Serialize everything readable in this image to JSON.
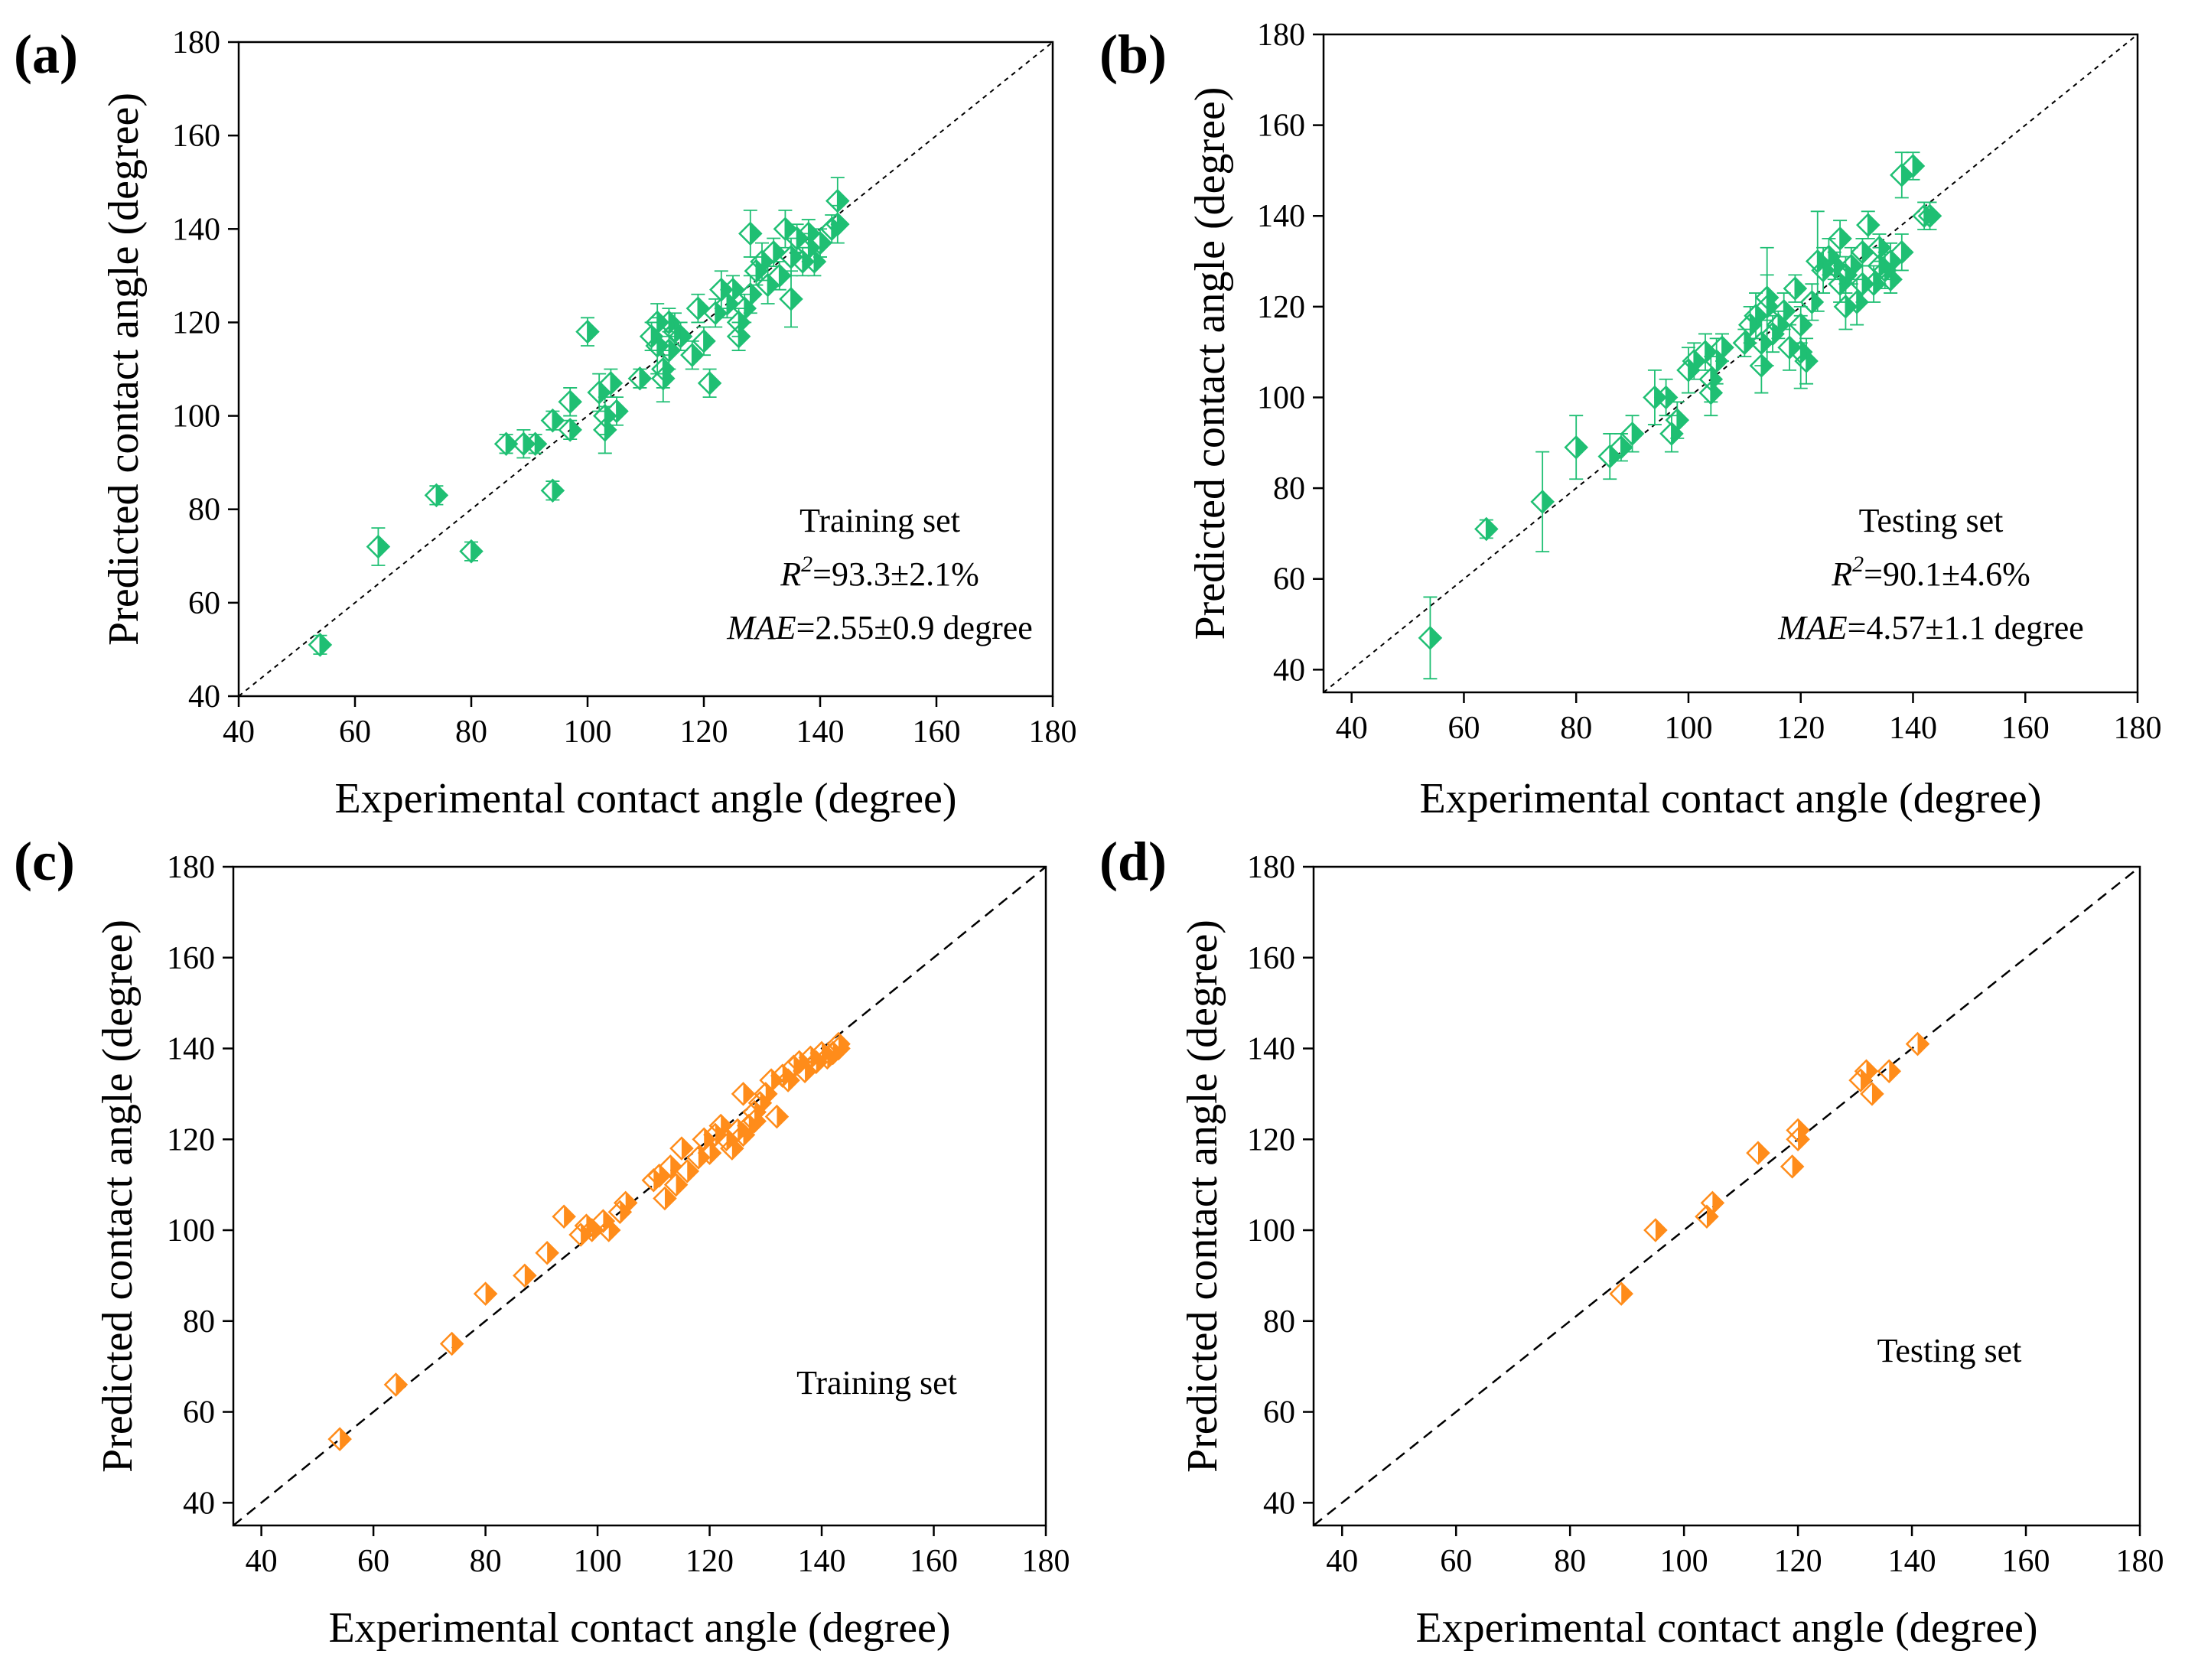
{
  "chart_data": [
    {
      "panel": "(a)",
      "type": "scatter",
      "color": "#1fbf73",
      "xlabel": "Experimental contact angle (degree)",
      "ylabel": "Predicted contact angle (degree)",
      "xlim": [
        40,
        180
      ],
      "ylim": [
        40,
        180
      ],
      "xticks": [
        "40",
        "60",
        "80",
        "100",
        "120",
        "140",
        "160",
        "180"
      ],
      "yticks": [
        "40",
        "60",
        "80",
        "100",
        "120",
        "140",
        "160",
        "180"
      ],
      "reference_line": "y = x (dotted)",
      "error_bars": true,
      "annotation": [
        "Training set",
        "R",
        "2",
        "=93.3±2.1%",
        "MAE",
        "=2.55±0.9 degree"
      ],
      "points": [
        [
          54,
          51,
          2
        ],
        [
          64,
          72,
          4
        ],
        [
          74,
          83,
          2
        ],
        [
          80,
          71,
          2
        ],
        [
          86,
          94,
          2
        ],
        [
          89,
          94,
          3
        ],
        [
          91,
          94,
          2
        ],
        [
          94,
          99,
          2
        ],
        [
          94,
          84,
          2
        ],
        [
          97,
          103,
          3
        ],
        [
          97,
          97,
          2
        ],
        [
          100,
          118,
          3
        ],
        [
          102,
          105,
          4
        ],
        [
          103,
          97,
          5
        ],
        [
          103,
          100,
          4
        ],
        [
          104,
          107,
          3
        ],
        [
          105,
          101,
          3
        ],
        [
          109,
          108,
          2
        ],
        [
          111,
          117,
          3
        ],
        [
          112,
          120,
          4
        ],
        [
          112,
          115,
          6
        ],
        [
          113,
          108,
          5
        ],
        [
          113,
          110,
          4
        ],
        [
          114,
          120,
          3
        ],
        [
          114,
          114,
          4
        ],
        [
          115,
          118,
          4
        ],
        [
          116,
          117,
          3
        ],
        [
          118,
          113,
          3
        ],
        [
          119,
          123,
          3
        ],
        [
          120,
          116,
          3
        ],
        [
          121,
          107,
          3
        ],
        [
          122,
          122,
          3
        ],
        [
          123,
          127,
          4
        ],
        [
          124,
          124,
          3
        ],
        [
          125,
          127,
          3
        ],
        [
          126,
          117,
          3
        ],
        [
          126,
          120,
          3
        ],
        [
          127,
          123,
          3
        ],
        [
          128,
          139,
          5
        ],
        [
          128,
          126,
          4
        ],
        [
          129,
          131,
          3
        ],
        [
          130,
          133,
          4
        ],
        [
          131,
          128,
          4
        ],
        [
          132,
          135,
          3
        ],
        [
          133,
          130,
          3
        ],
        [
          134,
          140,
          4
        ],
        [
          135,
          125,
          6
        ],
        [
          135,
          134,
          4
        ],
        [
          136,
          138,
          3
        ],
        [
          137,
          133,
          3
        ],
        [
          138,
          136,
          3
        ],
        [
          138,
          139,
          3
        ],
        [
          139,
          133,
          3
        ],
        [
          140,
          137,
          3
        ],
        [
          142,
          140,
          3
        ],
        [
          143,
          141,
          4
        ],
        [
          143,
          146,
          5
        ]
      ]
    },
    {
      "panel": "(b)",
      "type": "scatter",
      "color": "#1fbf73",
      "xlabel": "Experimental contact angle (degree)",
      "ylabel": "Predicted contact angle (degree)",
      "xlim": [
        35,
        180
      ],
      "ylim": [
        35,
        180
      ],
      "xticks": [
        "40",
        "60",
        "80",
        "100",
        "120",
        "140",
        "160",
        "180"
      ],
      "yticks": [
        "40",
        "60",
        "80",
        "100",
        "120",
        "140",
        "160",
        "180"
      ],
      "reference_line": "y = x (dotted)",
      "error_bars": true,
      "annotation": [
        "Testing set",
        "R",
        "2",
        "=90.1±4.6%",
        "MAE",
        "=4.57±1.1 degree"
      ],
      "points": [
        [
          54,
          47,
          9
        ],
        [
          64,
          71,
          2
        ],
        [
          74,
          77,
          11
        ],
        [
          80,
          89,
          7
        ],
        [
          86,
          87,
          5
        ],
        [
          88,
          89,
          3
        ],
        [
          90,
          92,
          4
        ],
        [
          94,
          100,
          6
        ],
        [
          96,
          100,
          4
        ],
        [
          97,
          92,
          4
        ],
        [
          98,
          95,
          4
        ],
        [
          100,
          106,
          5
        ],
        [
          101,
          108,
          4
        ],
        [
          103,
          110,
          4
        ],
        [
          104,
          101,
          5
        ],
        [
          104,
          104,
          5
        ],
        [
          105,
          108,
          5
        ],
        [
          106,
          111,
          3
        ],
        [
          110,
          112,
          3
        ],
        [
          111,
          116,
          4
        ],
        [
          112,
          118,
          5
        ],
        [
          113,
          107,
          6
        ],
        [
          113,
          112,
          5
        ],
        [
          114,
          120,
          13
        ],
        [
          114,
          122,
          5
        ],
        [
          115,
          114,
          4
        ],
        [
          116,
          116,
          3
        ],
        [
          117,
          119,
          4
        ],
        [
          118,
          111,
          5
        ],
        [
          119,
          124,
          3
        ],
        [
          120,
          116,
          4
        ],
        [
          120,
          110,
          8
        ],
        [
          121,
          108,
          5
        ],
        [
          122,
          121,
          4
        ],
        [
          123,
          130,
          11
        ],
        [
          124,
          128,
          5
        ],
        [
          125,
          131,
          4
        ],
        [
          126,
          129,
          3
        ],
        [
          127,
          125,
          4
        ],
        [
          127,
          135,
          4
        ],
        [
          128,
          120,
          5
        ],
        [
          128,
          127,
          4
        ],
        [
          129,
          129,
          4
        ],
        [
          130,
          121,
          5
        ],
        [
          131,
          125,
          4
        ],
        [
          131,
          132,
          3
        ],
        [
          132,
          138,
          3
        ],
        [
          133,
          125,
          4
        ],
        [
          134,
          129,
          4
        ],
        [
          134,
          133,
          3
        ],
        [
          135,
          128,
          4
        ],
        [
          136,
          126,
          3
        ],
        [
          136,
          130,
          4
        ],
        [
          138,
          132,
          4
        ],
        [
          138,
          149,
          5
        ],
        [
          140,
          151,
          3
        ],
        [
          142,
          140,
          3
        ],
        [
          143,
          140,
          3
        ]
      ]
    },
    {
      "panel": "(c)",
      "type": "scatter",
      "color": "#ff8c1a",
      "xlabel": "Experimental contact angle (degree)",
      "ylabel": "Predicted contact angle (degree)",
      "xlim": [
        35,
        180
      ],
      "ylim": [
        35,
        180
      ],
      "xticks": [
        "40",
        "60",
        "80",
        "100",
        "120",
        "140",
        "160",
        "180"
      ],
      "yticks": [
        "40",
        "60",
        "80",
        "100",
        "120",
        "140",
        "160",
        "180"
      ],
      "reference_line": "y = x (dashed)",
      "error_bars": false,
      "annotation": [
        "Training set"
      ],
      "points": [
        [
          54,
          54
        ],
        [
          64,
          66
        ],
        [
          74,
          75
        ],
        [
          80,
          86
        ],
        [
          87,
          90
        ],
        [
          91,
          95
        ],
        [
          94,
          103
        ],
        [
          97,
          99
        ],
        [
          98,
          101
        ],
        [
          99,
          100
        ],
        [
          101,
          102
        ],
        [
          102,
          100
        ],
        [
          104,
          104
        ],
        [
          105,
          106
        ],
        [
          110,
          111
        ],
        [
          111,
          112
        ],
        [
          112,
          107
        ],
        [
          113,
          114
        ],
        [
          114,
          110
        ],
        [
          115,
          118
        ],
        [
          116,
          113
        ],
        [
          118,
          116
        ],
        [
          119,
          120
        ],
        [
          120,
          117
        ],
        [
          121,
          121
        ],
        [
          122,
          123
        ],
        [
          123,
          120
        ],
        [
          124,
          118
        ],
        [
          125,
          122
        ],
        [
          126,
          121
        ],
        [
          126,
          130
        ],
        [
          127,
          123
        ],
        [
          128,
          126
        ],
        [
          128,
          124
        ],
        [
          129,
          128
        ],
        [
          130,
          130
        ],
        [
          131,
          133
        ],
        [
          132,
          125
        ],
        [
          133,
          134
        ],
        [
          134,
          133
        ],
        [
          135,
          136
        ],
        [
          136,
          137
        ],
        [
          137,
          135
        ],
        [
          138,
          138
        ],
        [
          139,
          137
        ],
        [
          140,
          139
        ],
        [
          141,
          138
        ],
        [
          142,
          139
        ],
        [
          143,
          141
        ],
        [
          143,
          140
        ]
      ]
    },
    {
      "panel": "(d)",
      "type": "scatter",
      "color": "#ff8c1a",
      "xlabel": "Experimental contact angle (degree)",
      "ylabel": "Predicted contact angle (degree)",
      "xlim": [
        35,
        180
      ],
      "ylim": [
        35,
        180
      ],
      "xticks": [
        "40",
        "60",
        "80",
        "100",
        "120",
        "140",
        "160",
        "180"
      ],
      "yticks": [
        "40",
        "60",
        "80",
        "100",
        "120",
        "140",
        "160",
        "180"
      ],
      "reference_line": "y = x (dashed)",
      "error_bars": false,
      "annotation": [
        "Testing set"
      ],
      "points": [
        [
          89,
          86
        ],
        [
          95,
          100
        ],
        [
          104,
          103
        ],
        [
          105,
          106
        ],
        [
          113,
          117
        ],
        [
          119,
          114
        ],
        [
          120,
          120
        ],
        [
          120,
          122
        ],
        [
          131,
          133
        ],
        [
          132,
          135
        ],
        [
          133,
          130
        ],
        [
          136,
          135
        ],
        [
          141,
          141
        ]
      ]
    }
  ]
}
